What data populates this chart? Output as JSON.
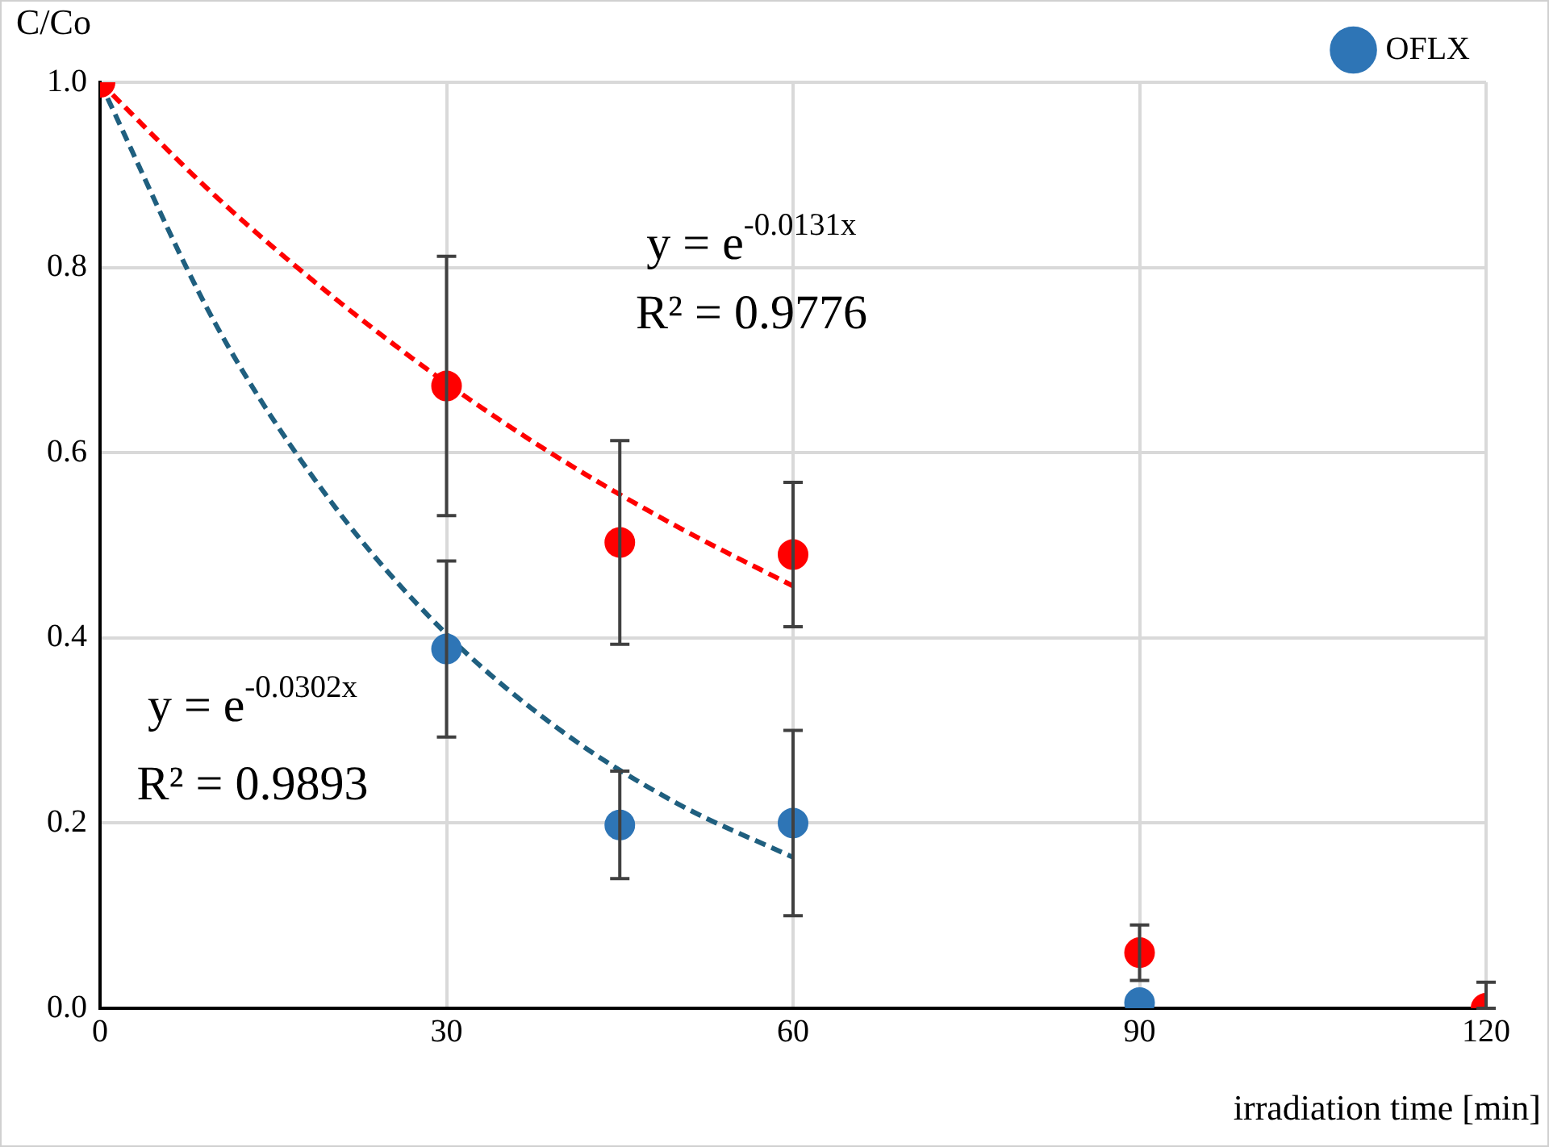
{
  "chart_data": {
    "type": "scatter",
    "xlabel": "irradiation time [min]",
    "ylabel": "C/Co",
    "xlim": [
      0,
      120
    ],
    "xticks": [
      0,
      30,
      60,
      90,
      120
    ],
    "ylim": [
      0,
      1
    ],
    "yticks": [
      {
        "value": 0,
        "label": "0.0"
      },
      {
        "value": 0.2,
        "label": "0.2"
      },
      {
        "value": 0.4,
        "label": "0.4"
      },
      {
        "value": 0.6,
        "label": "0.6"
      },
      {
        "value": 0.8,
        "label": "0.8"
      },
      {
        "value": 1,
        "label": "1.0"
      }
    ],
    "grid": true,
    "legend": "top right",
    "marker": "circle",
    "series": [
      {
        "name": "OFLX",
        "color": "#2e75b6",
        "x": [
          30,
          45,
          60,
          90
        ],
        "values": [
          0.388,
          0.198,
          0.2,
          0.006
        ],
        "errors": [
          0.095,
          0.058,
          0.1,
          null
        ]
      },
      {
        "color": "#ff0000",
        "x": [
          0,
          30,
          45,
          60,
          90,
          120
        ],
        "values": [
          1.0,
          0.672,
          0.503,
          0.49,
          0.06,
          0
        ],
        "errors": [
          null,
          0.14,
          0.11,
          0.078,
          0.03,
          [
            0,
            0.028
          ]
        ]
      },
      {
        "type": "line",
        "color": "#ff0000",
        "line_style": "dashed",
        "marker": "none",
        "x": [
          0,
          10,
          20,
          30,
          40,
          50,
          60
        ],
        "values": [
          1,
          0.877,
          0.77,
          0.675,
          0.592,
          0.52,
          0.456
        ]
      },
      {
        "type": "line",
        "color": "#1f5f7f",
        "line_style": "dashed",
        "marker": "none",
        "x": [
          0,
          10,
          20,
          30,
          40,
          50,
          60
        ],
        "values": [
          1,
          0.739,
          0.547,
          0.404,
          0.299,
          0.221,
          0.163
        ]
      }
    ],
    "annotations": [
      "y = e$^{-0.0131x}$",
      "R² = 0.9776",
      "y = e$^{-0.0302x}$",
      "R² = 0.9893"
    ]
  }
}
